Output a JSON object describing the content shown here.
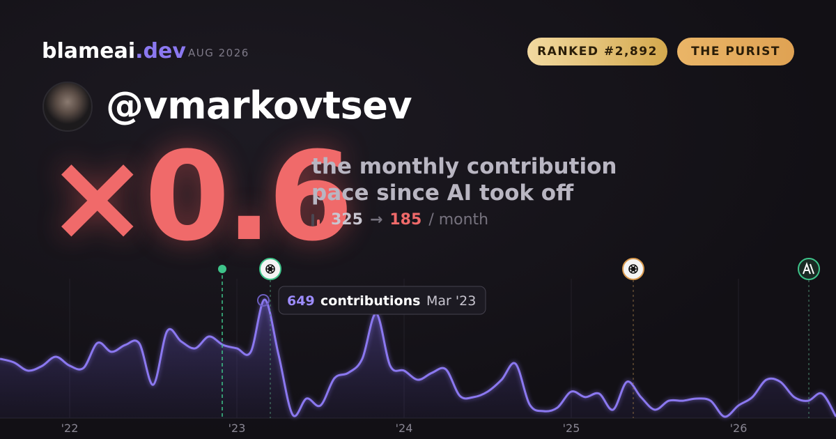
{
  "header": {
    "site_name": "blameai",
    "site_tld": ".dev",
    "period": "AUG 2026",
    "badges": [
      "RANKED #2,892",
      "THE PURIST"
    ],
    "handle": "@vmarkovtsev"
  },
  "summary": {
    "multiplier": "×0.6",
    "caption": [
      "the monthly contribution",
      "pace since AI took off"
    ],
    "before": 325,
    "arrow": "→",
    "after": 185,
    "unit": "/ month"
  },
  "tooltip": {
    "value": 649,
    "label": "contributions",
    "separator": "·",
    "date": "Mar '23"
  },
  "chart_data": {
    "type": "area",
    "color": "#8b78f0",
    "x": [
      "2021-08",
      "2021-09",
      "2021-10",
      "2021-11",
      "2021-12",
      "2022-01",
      "2022-02",
      "2022-03",
      "2022-04",
      "2022-05",
      "2022-06",
      "2022-07",
      "2022-08",
      "2022-09",
      "2022-10",
      "2022-11",
      "2022-12",
      "2023-01",
      "2023-02",
      "2023-03",
      "2023-04",
      "2023-05",
      "2023-06",
      "2023-07",
      "2023-08",
      "2023-09",
      "2023-10",
      "2023-11",
      "2023-12",
      "2024-01",
      "2024-02",
      "2024-03",
      "2024-04",
      "2024-05",
      "2024-06",
      "2024-07",
      "2024-08",
      "2024-09",
      "2024-10",
      "2024-11",
      "2024-12",
      "2025-01",
      "2025-02",
      "2025-03",
      "2025-04",
      "2025-05",
      "2025-06",
      "2025-07",
      "2025-08",
      "2025-09",
      "2025-10",
      "2025-11",
      "2025-12",
      "2026-01",
      "2026-02",
      "2026-03",
      "2026-04",
      "2026-05",
      "2026-06",
      "2026-07",
      "2026-08"
    ],
    "values": [
      325,
      305,
      260,
      285,
      336,
      287,
      275,
      412,
      363,
      401,
      409,
      183,
      477,
      420,
      382,
      447,
      401,
      382,
      363,
      649,
      344,
      19,
      107,
      69,
      218,
      248,
      325,
      573,
      287,
      260,
      210,
      248,
      267,
      122,
      115,
      145,
      210,
      298,
      76,
      38,
      57,
      145,
      115,
      134,
      46,
      199,
      115,
      46,
      95,
      95,
      107,
      95,
      8,
      69,
      115,
      210,
      199,
      115,
      95,
      134,
      8
    ],
    "xlim": [
      2021.5833,
      2026.5833
    ],
    "xticks": [
      {
        "value": 2022,
        "label": "'22"
      },
      {
        "value": 2023,
        "label": "'23"
      },
      {
        "value": 2024,
        "label": "'24"
      },
      {
        "value": 2025,
        "label": "'25"
      },
      {
        "value": 2026,
        "label": "'26"
      }
    ],
    "grid": true
  }
}
